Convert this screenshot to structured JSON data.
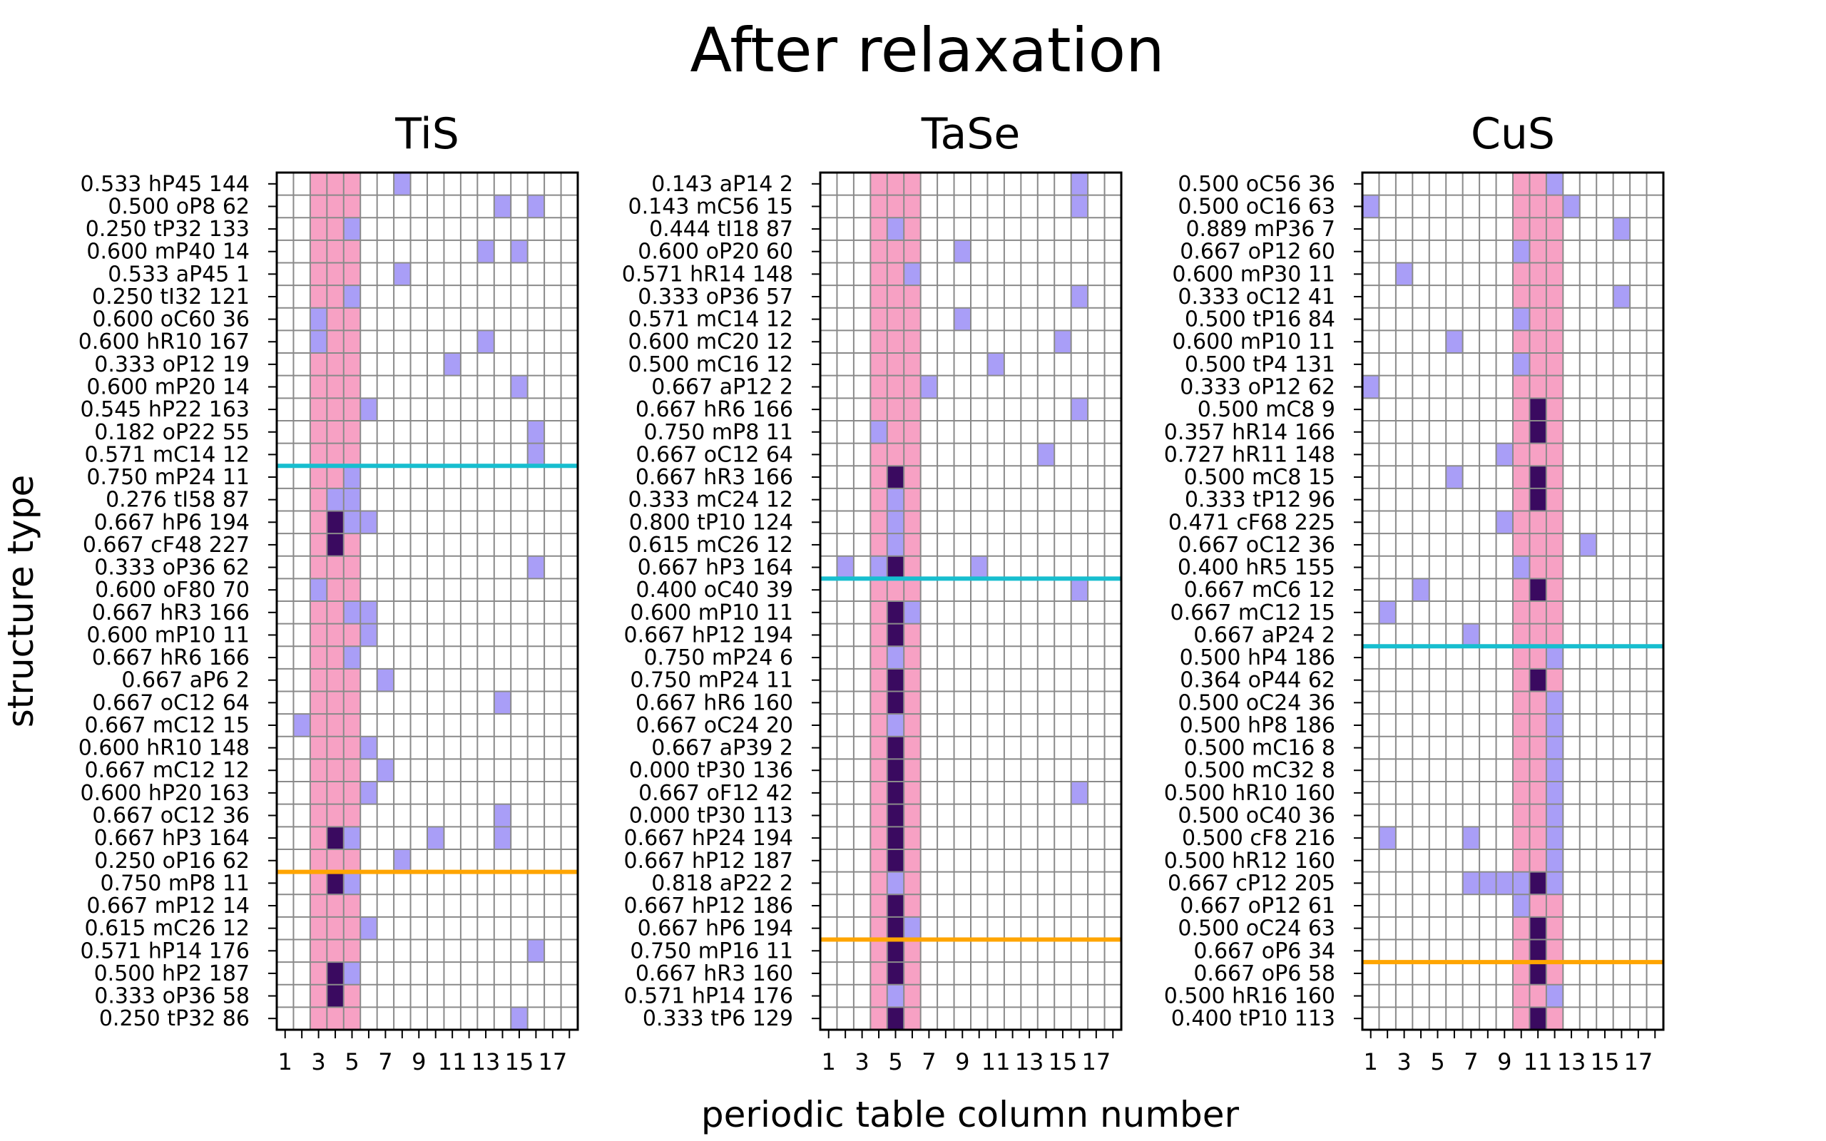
{
  "chart_data": {
    "type": "heatmap",
    "title": "After relaxation",
    "xlabel": "periodic table column number",
    "ylabel": "structure type",
    "x_range": [
      1,
      18
    ],
    "x_ticks": [
      "1",
      "3",
      "5",
      "7",
      "9",
      "11",
      "13",
      "15",
      "17"
    ],
    "grid": true,
    "colors": {
      "band": "#f7a1c4",
      "cell": "#a99ef7",
      "strong_cell": "#3a0a60",
      "grid": "#8a8a8a",
      "cyan_line": "#17becf",
      "orange_line": "#ffa500"
    },
    "panels": [
      {
        "title": "TiS",
        "band": [
          3,
          5
        ],
        "cyan_after_row": 13,
        "orange_after_row": 31,
        "rows": [
          {
            "label": "0.533 hP45 144",
            "cells": [
              8
            ],
            "strong": []
          },
          {
            "label": "0.500 oP8 62",
            "cells": [
              14,
              16
            ],
            "strong": []
          },
          {
            "label": "0.250 tP32 133",
            "cells": [
              5
            ],
            "strong": []
          },
          {
            "label": "0.600 mP40 14",
            "cells": [
              13,
              15
            ],
            "strong": []
          },
          {
            "label": "0.533 aP45 1",
            "cells": [
              8
            ],
            "strong": []
          },
          {
            "label": "0.250 tI32 121",
            "cells": [
              5
            ],
            "strong": []
          },
          {
            "label": "0.600 oC60 36",
            "cells": [
              3
            ],
            "strong": []
          },
          {
            "label": "0.600 hR10 167",
            "cells": [
              3,
              13
            ],
            "strong": []
          },
          {
            "label": "0.333 oP12 19",
            "cells": [
              11
            ],
            "strong": []
          },
          {
            "label": "0.600 mP20 14",
            "cells": [
              15
            ],
            "strong": []
          },
          {
            "label": "0.545 hP22 163",
            "cells": [
              6
            ],
            "strong": []
          },
          {
            "label": "0.182 oP22 55",
            "cells": [
              16
            ],
            "strong": []
          },
          {
            "label": "0.571 mC14 12",
            "cells": [
              16
            ],
            "strong": []
          },
          {
            "label": "0.750 mP24 11",
            "cells": [
              5
            ],
            "strong": []
          },
          {
            "label": "0.276 tI58 87",
            "cells": [
              4,
              5
            ],
            "strong": []
          },
          {
            "label": "0.667 hP6 194",
            "cells": [
              5,
              6
            ],
            "strong": [
              4
            ]
          },
          {
            "label": "0.667 cF48 227",
            "cells": [],
            "strong": [
              4
            ]
          },
          {
            "label": "0.333 oP36 62",
            "cells": [
              16
            ],
            "strong": []
          },
          {
            "label": "0.600 oF80 70",
            "cells": [
              3
            ],
            "strong": []
          },
          {
            "label": "0.667 hR3 166",
            "cells": [
              5,
              6
            ],
            "strong": []
          },
          {
            "label": "0.600 mP10 11",
            "cells": [
              6
            ],
            "strong": []
          },
          {
            "label": "0.667 hR6 166",
            "cells": [
              5
            ],
            "strong": []
          },
          {
            "label": "0.667 aP6 2",
            "cells": [
              7
            ],
            "strong": []
          },
          {
            "label": "0.667 oC12 64",
            "cells": [
              14
            ],
            "strong": []
          },
          {
            "label": "0.667 mC12 15",
            "cells": [
              2
            ],
            "strong": []
          },
          {
            "label": "0.600 hR10 148",
            "cells": [
              6
            ],
            "strong": []
          },
          {
            "label": "0.667 mC12 12",
            "cells": [
              7
            ],
            "strong": []
          },
          {
            "label": "0.600 hP20 163",
            "cells": [
              6
            ],
            "strong": []
          },
          {
            "label": "0.667 oC12 36",
            "cells": [
              14
            ],
            "strong": []
          },
          {
            "label": "0.667 hP3 164",
            "cells": [
              5,
              10,
              14
            ],
            "strong": [
              4
            ]
          },
          {
            "label": "0.250 oP16 62",
            "cells": [
              8
            ],
            "strong": []
          },
          {
            "label": "0.750 mP8 11",
            "cells": [
              5
            ],
            "strong": [
              4
            ]
          },
          {
            "label": "0.667 mP12 14",
            "cells": [],
            "strong": []
          },
          {
            "label": "0.615 mC26 12",
            "cells": [
              6
            ],
            "strong": []
          },
          {
            "label": "0.571 hP14 176",
            "cells": [
              16
            ],
            "strong": []
          },
          {
            "label": "0.500 hP2 187",
            "cells": [
              5
            ],
            "strong": [
              4
            ]
          },
          {
            "label": "0.333 oP36 58",
            "cells": [],
            "strong": [
              4
            ]
          },
          {
            "label": "0.250 tP32 86",
            "cells": [
              15
            ],
            "strong": []
          }
        ]
      },
      {
        "title": "TaSe",
        "band": [
          4,
          6
        ],
        "cyan_after_row": 18,
        "orange_after_row": 34,
        "rows": [
          {
            "label": "0.143 aP14 2",
            "cells": [
              16
            ],
            "strong": []
          },
          {
            "label": "0.143 mC56 15",
            "cells": [
              16
            ],
            "strong": []
          },
          {
            "label": "0.444 tI18 87",
            "cells": [
              5
            ],
            "strong": []
          },
          {
            "label": "0.600 oP20 60",
            "cells": [
              9
            ],
            "strong": []
          },
          {
            "label": "0.571 hR14 148",
            "cells": [
              6
            ],
            "strong": []
          },
          {
            "label": "0.333 oP36 57",
            "cells": [
              16
            ],
            "strong": []
          },
          {
            "label": "0.571 mC14 12",
            "cells": [
              9
            ],
            "strong": []
          },
          {
            "label": "0.600 mC20 12",
            "cells": [
              15
            ],
            "strong": []
          },
          {
            "label": "0.500 mC16 12",
            "cells": [
              11
            ],
            "strong": []
          },
          {
            "label": "0.667 aP12 2",
            "cells": [
              7
            ],
            "strong": []
          },
          {
            "label": "0.667 hR6 166",
            "cells": [
              16
            ],
            "strong": []
          },
          {
            "label": "0.750 mP8 11",
            "cells": [
              4
            ],
            "strong": []
          },
          {
            "label": "0.667 oC12 64",
            "cells": [
              14
            ],
            "strong": []
          },
          {
            "label": "0.667 hR3 166",
            "cells": [],
            "strong": [
              5
            ]
          },
          {
            "label": "0.333 mC24 12",
            "cells": [
              5
            ],
            "strong": []
          },
          {
            "label": "0.800 tP10 124",
            "cells": [
              5
            ],
            "strong": []
          },
          {
            "label": "0.615 mC26 12",
            "cells": [
              5
            ],
            "strong": []
          },
          {
            "label": "0.667 hP3 164",
            "cells": [
              2,
              4,
              10
            ],
            "strong": [
              5
            ]
          },
          {
            "label": "0.400 oC40 39",
            "cells": [
              16
            ],
            "strong": []
          },
          {
            "label": "0.600 mP10 11",
            "cells": [
              6
            ],
            "strong": [
              5
            ]
          },
          {
            "label": "0.667 hP12 194",
            "cells": [],
            "strong": [
              5
            ]
          },
          {
            "label": "0.750 mP24 6",
            "cells": [
              5
            ],
            "strong": []
          },
          {
            "label": "0.750 mP24 11",
            "cells": [],
            "strong": [
              5
            ]
          },
          {
            "label": "0.667 hR6 160",
            "cells": [],
            "strong": [
              5
            ]
          },
          {
            "label": "0.667 oC24 20",
            "cells": [
              5
            ],
            "strong": []
          },
          {
            "label": "0.667 aP39 2",
            "cells": [],
            "strong": [
              5
            ]
          },
          {
            "label": "0.000 tP30 136",
            "cells": [],
            "strong": [
              5
            ]
          },
          {
            "label": "0.667 oF12 42",
            "cells": [
              16
            ],
            "strong": [
              5
            ]
          },
          {
            "label": "0.000 tP30 113",
            "cells": [],
            "strong": [
              5
            ]
          },
          {
            "label": "0.667 hP24 194",
            "cells": [],
            "strong": [
              5
            ]
          },
          {
            "label": "0.667 hP12 187",
            "cells": [],
            "strong": [
              5
            ]
          },
          {
            "label": "0.818 aP22 2",
            "cells": [
              5
            ],
            "strong": []
          },
          {
            "label": "0.667 hP12 186",
            "cells": [],
            "strong": [
              5
            ]
          },
          {
            "label": "0.667 hP6 194",
            "cells": [
              6
            ],
            "strong": [
              5
            ]
          },
          {
            "label": "0.750 mP16 11",
            "cells": [],
            "strong": [
              5
            ]
          },
          {
            "label": "0.667 hR3 160",
            "cells": [],
            "strong": [
              5
            ]
          },
          {
            "label": "0.571 hP14 176",
            "cells": [
              5
            ],
            "strong": []
          },
          {
            "label": "0.333 tP6 129",
            "cells": [],
            "strong": [
              5
            ]
          }
        ]
      },
      {
        "title": "CuS",
        "band": [
          10,
          12
        ],
        "cyan_after_row": 21,
        "orange_after_row": 35,
        "rows": [
          {
            "label": "0.500 oC56 36",
            "cells": [
              12
            ],
            "strong": []
          },
          {
            "label": "0.500 oC16 63",
            "cells": [
              1,
              13
            ],
            "strong": []
          },
          {
            "label": "0.889 mP36 7",
            "cells": [
              16
            ],
            "strong": []
          },
          {
            "label": "0.667 oP12 60",
            "cells": [
              10
            ],
            "strong": []
          },
          {
            "label": "0.600 mP30 11",
            "cells": [
              3
            ],
            "strong": []
          },
          {
            "label": "0.333 oC12 41",
            "cells": [
              16
            ],
            "strong": []
          },
          {
            "label": "0.500 tP16 84",
            "cells": [
              10
            ],
            "strong": []
          },
          {
            "label": "0.600 mP10 11",
            "cells": [
              6
            ],
            "strong": []
          },
          {
            "label": "0.500 tP4 131",
            "cells": [
              10
            ],
            "strong": []
          },
          {
            "label": "0.333 oP12 62",
            "cells": [
              1
            ],
            "strong": []
          },
          {
            "label": "0.500 mC8 9",
            "cells": [],
            "strong": [
              11
            ]
          },
          {
            "label": "0.357 hR14 166",
            "cells": [],
            "strong": [
              11
            ]
          },
          {
            "label": "0.727 hR11 148",
            "cells": [
              9
            ],
            "strong": []
          },
          {
            "label": "0.500 mC8 15",
            "cells": [
              6
            ],
            "strong": [
              11
            ]
          },
          {
            "label": "0.333 tP12 96",
            "cells": [],
            "strong": [
              11
            ]
          },
          {
            "label": "0.471 cF68 225",
            "cells": [
              9
            ],
            "strong": []
          },
          {
            "label": "0.667 oC12 36",
            "cells": [
              14
            ],
            "strong": []
          },
          {
            "label": "0.400 hR5 155",
            "cells": [
              10
            ],
            "strong": []
          },
          {
            "label": "0.667 mC6 12",
            "cells": [
              4
            ],
            "strong": [
              11
            ]
          },
          {
            "label": "0.667 mC12 15",
            "cells": [
              2
            ],
            "strong": []
          },
          {
            "label": "0.667 aP24 2",
            "cells": [
              7
            ],
            "strong": []
          },
          {
            "label": "0.500 hP4 186",
            "cells": [
              12
            ],
            "strong": []
          },
          {
            "label": "0.364 oP44 62",
            "cells": [],
            "strong": [
              11
            ]
          },
          {
            "label": "0.500 oC24 36",
            "cells": [
              12
            ],
            "strong": []
          },
          {
            "label": "0.500 hP8 186",
            "cells": [
              12
            ],
            "strong": []
          },
          {
            "label": "0.500 mC16 8",
            "cells": [
              12
            ],
            "strong": []
          },
          {
            "label": "0.500 mC32 8",
            "cells": [
              12
            ],
            "strong": []
          },
          {
            "label": "0.500 hR10 160",
            "cells": [
              12
            ],
            "strong": []
          },
          {
            "label": "0.500 oC40 36",
            "cells": [
              12
            ],
            "strong": []
          },
          {
            "label": "0.500 cF8 216",
            "cells": [
              2,
              7,
              12
            ],
            "strong": []
          },
          {
            "label": "0.500 hR12 160",
            "cells": [
              12
            ],
            "strong": []
          },
          {
            "label": "0.667 cP12 205",
            "cells": [
              7,
              8,
              9,
              10,
              12
            ],
            "strong": [
              11
            ]
          },
          {
            "label": "0.667 oP12 61",
            "cells": [
              10
            ],
            "strong": []
          },
          {
            "label": "0.500 oC24 63",
            "cells": [],
            "strong": [
              11
            ]
          },
          {
            "label": "0.667 oP6 34",
            "cells": [],
            "strong": [
              11
            ]
          },
          {
            "label": "0.667 oP6 58",
            "cells": [],
            "strong": [
              11
            ]
          },
          {
            "label": "0.500 hR16 160",
            "cells": [
              12
            ],
            "strong": []
          },
          {
            "label": "0.400 tP10 113",
            "cells": [],
            "strong": [
              11
            ]
          }
        ]
      }
    ]
  }
}
